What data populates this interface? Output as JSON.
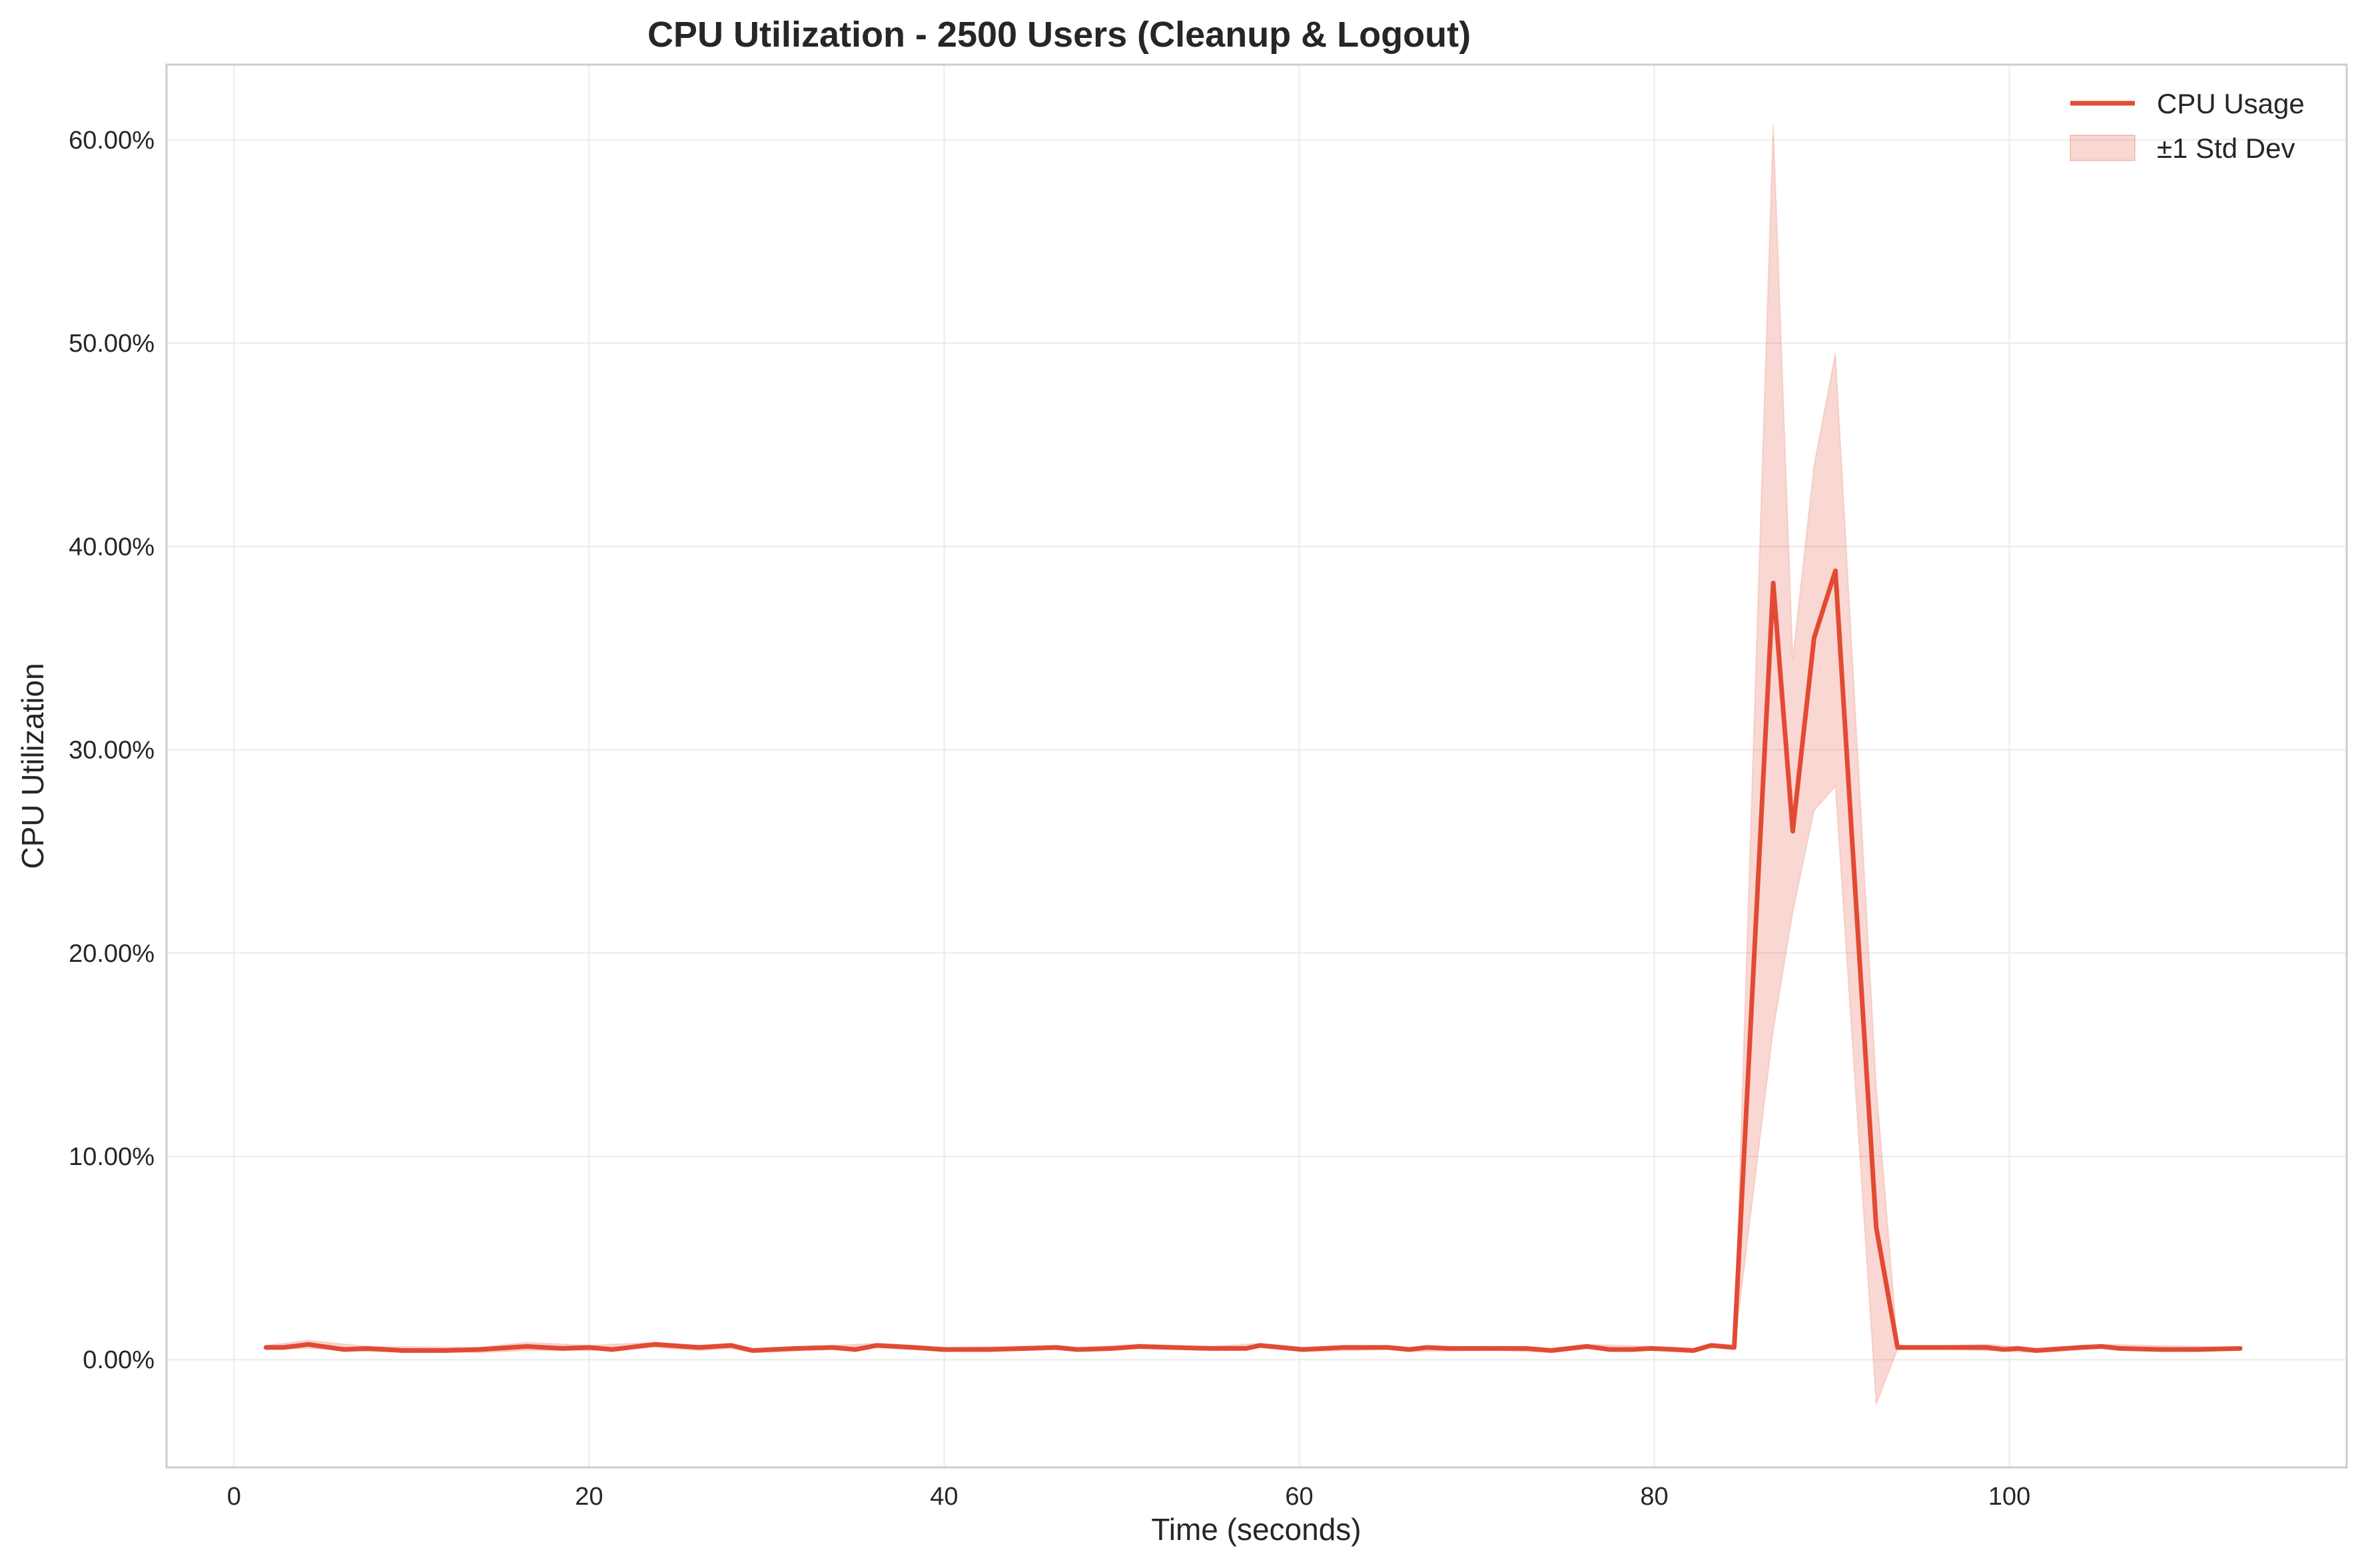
{
  "chart_data": {
    "type": "line",
    "title": "CPU Utilization - 2500 Users (Cleanup & Logout)",
    "xlabel": "Time (seconds)",
    "ylabel": "CPU Utilization",
    "xlim": [
      -3.8,
      119
    ],
    "ylim": [
      -5.3,
      63.7
    ],
    "xticks": [
      0,
      20,
      40,
      60,
      80,
      100
    ],
    "xtick_labels": [
      "0",
      "20",
      "40",
      "60",
      "80",
      "100"
    ],
    "yticks": [
      0,
      10,
      20,
      30,
      40,
      50,
      60
    ],
    "ytick_labels": [
      "0.00%",
      "10.00%",
      "20.00%",
      "30.00%",
      "40.00%",
      "50.00%",
      "60.00%"
    ],
    "grid": true,
    "legend_position": "top-right",
    "series": [
      {
        "name": "CPU Usage",
        "kind": "line",
        "color": "#e24a33",
        "x": [
          1.8,
          2.8,
          4.2,
          6.2,
          7.5,
          9.5,
          11.8,
          13.8,
          16.5,
          18.5,
          20,
          21.3,
          23.7,
          26.2,
          28,
          29.2,
          31.7,
          33.7,
          35,
          36.2,
          38.3,
          40,
          42.5,
          44.7,
          46.3,
          47.5,
          49.5,
          51,
          52.8,
          55,
          57,
          57.8,
          60.2,
          62.5,
          65,
          66.2,
          67.2,
          68.5,
          71.2,
          72.8,
          74.2,
          76.2,
          77.5,
          78.8,
          79.8,
          81.2,
          82.2,
          83.2,
          84.5,
          86.7,
          87.8,
          89,
          90.2,
          92.5,
          93.7,
          96.7,
          98.7,
          99.7,
          100.5,
          101.5,
          104,
          105.2,
          106.2,
          108.5,
          110.5,
          113
        ],
        "y": [
          0.6,
          0.6,
          0.75,
          0.5,
          0.55,
          0.45,
          0.45,
          0.5,
          0.65,
          0.55,
          0.6,
          0.5,
          0.75,
          0.6,
          0.7,
          0.45,
          0.55,
          0.6,
          0.5,
          0.7,
          0.6,
          0.5,
          0.5,
          0.55,
          0.6,
          0.5,
          0.55,
          0.65,
          0.6,
          0.55,
          0.55,
          0.7,
          0.5,
          0.6,
          0.6,
          0.5,
          0.6,
          0.55,
          0.55,
          0.55,
          0.45,
          0.65,
          0.5,
          0.5,
          0.55,
          0.5,
          0.45,
          0.7,
          0.6,
          38.2,
          26,
          35.5,
          38.8,
          6.5,
          0.6,
          0.6,
          0.6,
          0.5,
          0.55,
          0.45,
          0.6,
          0.65,
          0.55,
          0.5,
          0.5,
          0.55
        ]
      },
      {
        "name": "±1 Std Dev",
        "kind": "band",
        "color": "#e24a33",
        "opacity": 0.22,
        "x": [
          1.8,
          4.2,
          7.5,
          13.8,
          16.5,
          20,
          23.7,
          26.2,
          28,
          29.2,
          33.7,
          36.2,
          40,
          46.3,
          47.5,
          51,
          55,
          57.8,
          60.2,
          65,
          66.2,
          71.2,
          74.2,
          76.2,
          79.8,
          82.2,
          83.2,
          84.5,
          86.7,
          87.8,
          89,
          90.2,
          92.5,
          93.7,
          96.7,
          98.7,
          101.5,
          105.2,
          110.5,
          113
        ],
        "lower": [
          0.5,
          0.55,
          0.4,
          0.35,
          0.45,
          0.45,
          0.6,
          0.45,
          0.55,
          0.35,
          0.5,
          0.6,
          0.4,
          0.5,
          0.4,
          0.55,
          0.45,
          0.6,
          0.4,
          0.5,
          0.4,
          0.45,
          0.35,
          0.55,
          0.45,
          0.35,
          0.6,
          0.5,
          16.2,
          22,
          27,
          28.2,
          -2.2,
          0.5,
          0.5,
          0.45,
          0.35,
          0.55,
          0.4,
          0.5
        ],
        "upper": [
          0.7,
          0.95,
          0.65,
          0.6,
          0.85,
          0.7,
          0.85,
          0.7,
          0.8,
          0.55,
          0.7,
          0.8,
          0.6,
          0.7,
          0.6,
          0.75,
          0.65,
          0.8,
          0.6,
          0.7,
          0.6,
          0.65,
          0.55,
          0.75,
          0.65,
          0.55,
          0.8,
          0.7,
          60.8,
          34.5,
          44,
          49.5,
          13.5,
          0.7,
          0.7,
          0.75,
          0.55,
          0.75,
          0.65,
          0.6
        ]
      }
    ]
  }
}
